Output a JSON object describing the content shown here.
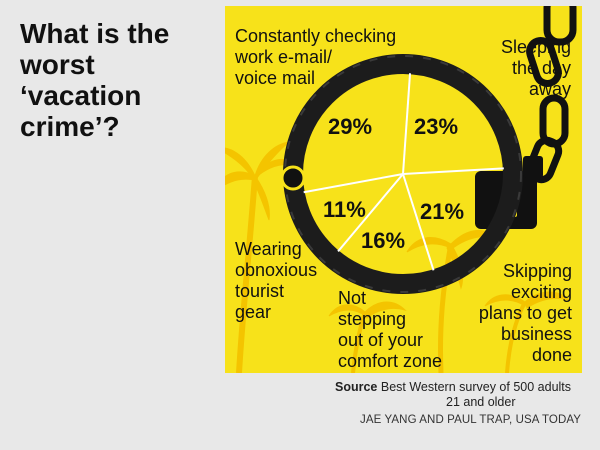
{
  "header": {
    "title_lines": [
      "What is the",
      "worst",
      "‘vacation",
      "crime’?"
    ]
  },
  "chart_data": {
    "type": "pie",
    "title": "What is the worst ‘vacation crime’?",
    "slices": [
      {
        "label": "Constantly checking work e-mail/ voice mail",
        "value": 29
      },
      {
        "label": "Sleeping the day away",
        "value": 23
      },
      {
        "label": "Skipping exciting plans to get business done",
        "value": 21
      },
      {
        "label": "Not stepping out of your comfort zone",
        "value": 16
      },
      {
        "label": "Wearing obnoxious tourist gear",
        "value": 11
      }
    ],
    "value_labels": [
      "29%",
      "23%",
      "21%",
      "16%",
      "11%"
    ],
    "label_lines": {
      "email": [
        "Constantly checking",
        "work e-mail/",
        "voice mail"
      ],
      "sleep": [
        "Sleeping",
        "the day",
        "away"
      ],
      "skip": [
        "Skipping",
        "exciting",
        "plans to get",
        "business",
        "done"
      ],
      "comfort": [
        "Not",
        "stepping",
        "out of your",
        "comfort zone"
      ],
      "gear": [
        "Wearing",
        "obnoxious",
        "tourist",
        "gear"
      ]
    }
  },
  "footer": {
    "source_label": "Source",
    "source_text_1": "Best Western survey of 500 adults",
    "source_text_2": "21 and older",
    "credit": "JAE YANG AND PAUL TRAP, USA TODAY"
  },
  "colors": {
    "background": "#e8e8e8",
    "panel": "#f7e21a",
    "palm": "#f4c400",
    "ink": "#111111",
    "divider": "#ffffff"
  },
  "icons": [
    "handcuff-icon",
    "palm-tree-icon",
    "keyhole-icon",
    "chain-icon"
  ]
}
